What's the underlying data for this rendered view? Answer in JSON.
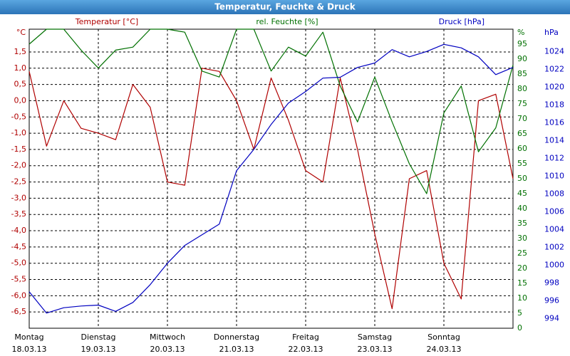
{
  "chart_data": {
    "type": "line",
    "title": "Temperatur, Feuchte & Druck",
    "y_unit": "°C",
    "y2_unit": "%",
    "y3_unit": "hPa",
    "x": [
      0,
      0.25,
      0.5,
      0.75,
      1,
      1.25,
      1.5,
      1.75,
      2,
      2.25,
      2.5,
      2.75,
      3,
      3.25,
      3.5,
      3.75,
      4,
      4.25,
      4.5,
      4.75,
      5,
      5.25,
      5.5,
      5.75,
      6,
      6.25,
      6.5,
      6.75,
      7
    ],
    "xlim": [
      0,
      7
    ],
    "days": [
      {
        "value": 0,
        "weekday": "Montag",
        "date": "18.03.13"
      },
      {
        "value": 1,
        "weekday": "Dienstag",
        "date": "19.03.13"
      },
      {
        "value": 2,
        "weekday": "Mittwoch",
        "date": "20.03.13"
      },
      {
        "value": 3,
        "weekday": "Donnerstag",
        "date": "21.03.13"
      },
      {
        "value": 4,
        "weekday": "Freitag",
        "date": "22.03.13"
      },
      {
        "value": 5,
        "weekday": "Samstag",
        "date": "23.03.13"
      },
      {
        "value": 6,
        "weekday": "Sonntag",
        "date": "24.03.13"
      }
    ],
    "series": [
      {
        "name": "Temperatur [°C]",
        "color": "#b00000",
        "axis": "y",
        "values": [
          0.9,
          -1.4,
          0.0,
          -0.85,
          -1.0,
          -1.2,
          0.5,
          -0.2,
          -2.5,
          -2.6,
          1.0,
          0.9,
          0.0,
          -1.5,
          0.7,
          -0.6,
          -2.15,
          -2.5,
          0.7,
          -1.5,
          -4.1,
          -6.4,
          -2.4,
          -2.15,
          -5.0,
          -6.1,
          0.0,
          0.2,
          -2.4
        ]
      },
      {
        "name": "rel. Feuchte [%]",
        "color": "#007000",
        "axis": "y2",
        "values": [
          95,
          100,
          100,
          93,
          87,
          93,
          94,
          100,
          100,
          99,
          86,
          84,
          100,
          100,
          86,
          94,
          91,
          99,
          81,
          69,
          84,
          69,
          55,
          45,
          72,
          81,
          59,
          67,
          88
        ]
      },
      {
        "name": "Druck [hPa]",
        "color": "#0000c0",
        "axis": "y3",
        "values": [
          997,
          994.6,
          995.2,
          995.4,
          995.5,
          994.8,
          995.8,
          997.8,
          1000.2,
          1002.2,
          1003.4,
          1004.6,
          1010.6,
          1013,
          1015.8,
          1018.2,
          1019.5,
          1021,
          1021.1,
          1022.2,
          1022.7,
          1024.2,
          1023.4,
          1024,
          1024.8,
          1024.4,
          1023.4,
          1021.4,
          1022.2
        ]
      }
    ],
    "ylim": [
      -7,
      2.2
    ],
    "yticks": [
      {
        "value": 1.5,
        "label": "1,5"
      },
      {
        "value": 1,
        "label": "1,0"
      },
      {
        "value": 0.5,
        "label": "0,5"
      },
      {
        "value": 0,
        "label": "0,0"
      },
      {
        "value": -0.5,
        "label": "-0,5"
      },
      {
        "value": -1,
        "label": "-1,0"
      },
      {
        "value": -1.5,
        "label": "-1,5"
      },
      {
        "value": -2,
        "label": "-2,0"
      },
      {
        "value": -2.5,
        "label": "-2,5"
      },
      {
        "value": -3,
        "label": "-3,0"
      },
      {
        "value": -3.5,
        "label": "-3,5"
      },
      {
        "value": -4,
        "label": "-4,0"
      },
      {
        "value": -4.5,
        "label": "-4,5"
      },
      {
        "value": -5,
        "label": "-5,0"
      },
      {
        "value": -5.5,
        "label": "-5,5"
      },
      {
        "value": -6,
        "label": "-6,0"
      },
      {
        "value": -6.5,
        "label": "-6,5"
      }
    ],
    "y2lim": [
      0,
      100
    ],
    "y2ticks": [
      0,
      5,
      10,
      15,
      20,
      25,
      30,
      35,
      40,
      45,
      50,
      55,
      60,
      65,
      70,
      75,
      80,
      85,
      90,
      95
    ],
    "y3lim": [
      992.9,
      1026.5
    ],
    "y3ticks": [
      994,
      996,
      998,
      1000,
      1002,
      1004,
      1006,
      1008,
      1010,
      1012,
      1014,
      1016,
      1018,
      1020,
      1022,
      1024
    ],
    "grid": true
  }
}
